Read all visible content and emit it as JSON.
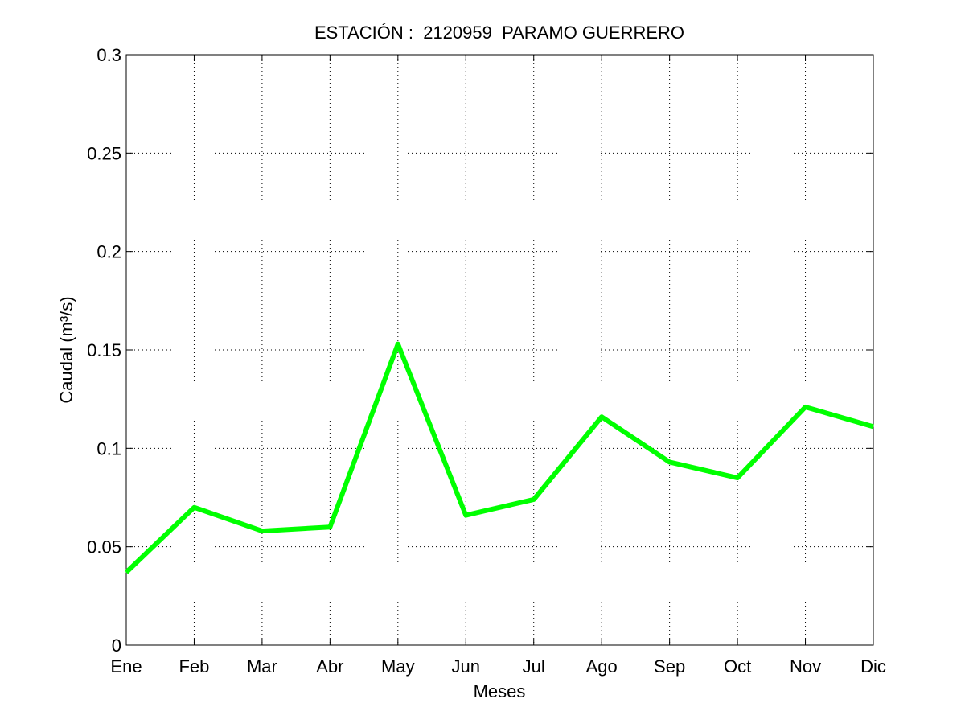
{
  "chart_data": {
    "type": "line",
    "title": "ESTACIÓN :  2120959  PARAMO GUERRERO",
    "xlabel": "Meses",
    "ylabel": "Caudal (m³/s)",
    "categories": [
      "Ene",
      "Feb",
      "Mar",
      "Abr",
      "May",
      "Jun",
      "Jul",
      "Ago",
      "Sep",
      "Oct",
      "Nov",
      "Dic"
    ],
    "yticks": [
      "0",
      "0.05",
      "0.1",
      "0.15",
      "0.2",
      "0.25",
      "0.3"
    ],
    "ylim": [
      0,
      0.3
    ],
    "grid": true,
    "series": [
      {
        "color": "#00ff00",
        "values": [
          0.037,
          0.07,
          0.058,
          0.06,
          0.153,
          0.066,
          0.074,
          0.116,
          0.093,
          0.085,
          0.121,
          0.111
        ]
      }
    ]
  }
}
